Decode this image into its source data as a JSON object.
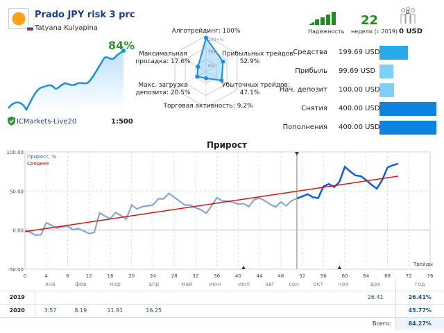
{
  "header": {
    "title": "Prado JPY risk 3 prc",
    "author": "Tatyana Kulyapina",
    "growth": "84%",
    "broker": "ICMarkets-Live20",
    "leverage": "1:500"
  },
  "radar": {
    "labels": [
      "Алготрейдинг: 100%",
      "Прибыльных трейдов:\n52.9%",
      "Убыточных трейдов:\n47.1%",
      "Торговая активность: 9.2%",
      "Макс. загрузка\nдепозита: 20.5%",
      "Максимальная\nпросадка: 17.6%"
    ],
    "values": [
      100,
      52.9,
      47.1,
      9.2,
      20.5,
      17.6
    ],
    "ticks": [
      "100+%",
      "50%",
      "0%"
    ]
  },
  "stats": {
    "reliability_label": "Надежность",
    "weeks": "22",
    "weeks_label": "недели (с 2019)",
    "subscribers": "0",
    "subscribers_funds": "0 USD"
  },
  "finance": [
    {
      "label": "Средства",
      "value": "199.69 USD",
      "amount": 199.69,
      "color": "#29a9e9"
    },
    {
      "label": "Прибыль",
      "value": "99.69 USD",
      "amount": 99.69,
      "color": "#80d0f5"
    },
    {
      "label": "Нач. депозит",
      "value": "100.00 USD",
      "amount": 100,
      "color": "#80d0f5"
    },
    {
      "label": "Снятия",
      "value": "400.00 USD",
      "amount": 400,
      "color": "#0a84e0"
    },
    {
      "label": "Пополнения",
      "value": "400.00 USD",
      "amount": 400,
      "color": "#0a84e0"
    }
  ],
  "chart_data": {
    "type": "line",
    "title": "Прирост",
    "xlabel": "Трейды",
    "xlim": [
      0,
      76
    ],
    "ylim": [
      -50,
      100
    ],
    "xticks": [
      "0",
      "4",
      "8",
      "12",
      "16",
      "20",
      "24",
      "28",
      "32",
      "36",
      "40",
      "44",
      "48",
      "52",
      "56",
      "60",
      "64",
      "68",
      "72",
      "76"
    ],
    "yticks": [
      "100.00",
      "50.00",
      "0.00",
      "-50.00"
    ],
    "legend": [
      "Прирост, %",
      "Среднее"
    ],
    "series": [
      {
        "name": "Прирост, %",
        "y": [
          0,
          -3,
          -6.5,
          -6,
          9.5,
          6,
          2.5,
          4,
          5,
          0.5,
          2,
          -1,
          -4.5,
          -3,
          22,
          18,
          14.5,
          22.5,
          18.5,
          14,
          32,
          27,
          30,
          31,
          32,
          40,
          40,
          47,
          42,
          37,
          32,
          32,
          28.5,
          26,
          21.5,
          31,
          41.5,
          37.5,
          37,
          36,
          33,
          34,
          30,
          39,
          41,
          37.5,
          33,
          29.5,
          36,
          31,
          37.5,
          40.5,
          43,
          46,
          42,
          41,
          56,
          59,
          55,
          62,
          81,
          75,
          70,
          69,
          64,
          58,
          53,
          64,
          80,
          83,
          85
        ]
      },
      {
        "name": "Среднее",
        "x": [
          0,
          70
        ],
        "y": [
          -2,
          69
        ]
      }
    ],
    "highlight_from": 51,
    "markers_bottom": [
      41,
      59
    ],
    "marker_top": 51
  },
  "table": {
    "months": [
      "янв",
      "фев",
      "мар",
      "апр",
      "май",
      "июн",
      "июл",
      "авг",
      "сен",
      "окт",
      "ноя",
      "дек"
    ],
    "year_label": "год",
    "rows": [
      {
        "year": "2019",
        "values": [
          "",
          "",
          "",
          "",
          "",
          "",
          "",
          "",
          "",
          "",
          "",
          "26.41"
        ],
        "total": "26.41%"
      },
      {
        "year": "2020",
        "values": [
          "3.57",
          "8.19",
          "11.91",
          "16.25",
          "",
          "",
          "",
          "",
          "",
          "",
          "",
          ""
        ],
        "total": "45.77%"
      }
    ],
    "total_label": "Всего:",
    "total": "84.27%"
  }
}
